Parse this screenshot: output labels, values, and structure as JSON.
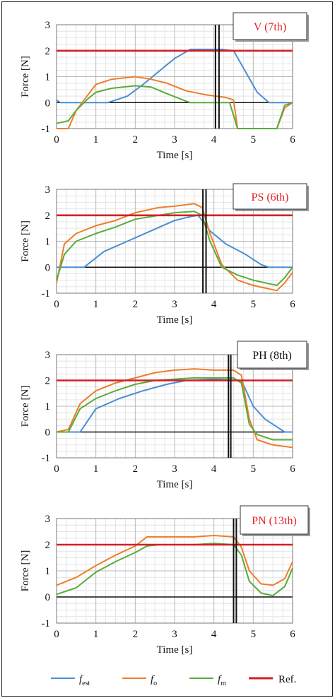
{
  "chart_data": [
    {
      "type": "line",
      "title": "V (7th)",
      "title_color": "#e8202a",
      "xlabel": "Time [s]",
      "ylabel": "Force [N]",
      "xlim": [
        0,
        6
      ],
      "ylim": [
        -1,
        3
      ],
      "xticks": [
        "0",
        "1",
        "2",
        "3",
        "4",
        "5",
        "6"
      ],
      "yticks": [
        "-1",
        "0",
        "1",
        "2",
        "3"
      ],
      "vlines": [
        4.04,
        4.13
      ],
      "series": [
        {
          "key": "f_est",
          "x": [
            0,
            0.1,
            0.3,
            1.3,
            1.8,
            2.2,
            2.6,
            3.0,
            3.4,
            3.8,
            4.2,
            4.5,
            4.8,
            5.1,
            5.4,
            6.0
          ],
          "y": [
            0.1,
            0,
            0,
            0,
            0.25,
            0.7,
            1.2,
            1.7,
            2.05,
            2.05,
            2.05,
            2.0,
            1.2,
            0.4,
            0,
            0
          ]
        },
        {
          "key": "f_o",
          "x": [
            0,
            0.3,
            0.5,
            0.8,
            1.0,
            1.4,
            2.0,
            2.4,
            2.8,
            3.3,
            3.8,
            4.3,
            4.5,
            4.6,
            5.0,
            5.6,
            5.8,
            6.0
          ],
          "y": [
            -1,
            -1,
            -0.3,
            0.3,
            0.7,
            0.9,
            1.0,
            0.9,
            0.75,
            0.45,
            0.3,
            0.2,
            0.1,
            -1,
            -1,
            -1,
            -0.2,
            0
          ]
        },
        {
          "key": "f_m",
          "x": [
            0,
            0.3,
            0.5,
            0.8,
            1.0,
            1.4,
            2.0,
            2.4,
            2.8,
            3.3,
            3.4,
            4.4,
            4.6,
            5.0,
            5.6,
            5.8,
            6.0
          ],
          "y": [
            -0.8,
            -0.7,
            -0.3,
            0.15,
            0.4,
            0.55,
            0.65,
            0.6,
            0.35,
            0.05,
            0,
            0,
            -1,
            -1,
            -1,
            -0.1,
            0
          ]
        },
        {
          "key": "ref",
          "x": [
            0,
            6
          ],
          "y": [
            2,
            2
          ]
        }
      ]
    },
    {
      "type": "line",
      "title": "PS (6th)",
      "title_color": "#e8202a",
      "xlabel": "Time [s]",
      "ylabel": "Force [N]",
      "xlim": [
        0,
        6
      ],
      "ylim": [
        -1,
        3
      ],
      "xticks": [
        "0",
        "1",
        "2",
        "3",
        "4",
        "5",
        "6"
      ],
      "yticks": [
        "-1",
        "0",
        "1",
        "2",
        "3"
      ],
      "vlines": [
        3.72,
        3.8
      ],
      "series": [
        {
          "key": "f_est",
          "x": [
            0,
            0.7,
            1.2,
            1.8,
            2.4,
            3.0,
            3.4,
            3.6,
            3.9,
            4.3,
            4.8,
            5.2,
            5.4,
            6.0
          ],
          "y": [
            0,
            0,
            0.6,
            1.0,
            1.4,
            1.8,
            1.95,
            2.0,
            1.4,
            0.9,
            0.5,
            0.1,
            0,
            0
          ]
        },
        {
          "key": "f_o",
          "x": [
            0,
            0.2,
            0.5,
            1.0,
            1.5,
            2.0,
            2.6,
            3.0,
            3.5,
            3.7,
            3.9,
            4.2,
            4.6,
            5.0,
            5.6,
            5.8,
            6.0
          ],
          "y": [
            -0.6,
            0.9,
            1.3,
            1.6,
            1.8,
            2.1,
            2.3,
            2.35,
            2.45,
            2.3,
            1.3,
            0.1,
            -0.5,
            -0.7,
            -0.9,
            -0.6,
            -0.2
          ]
        },
        {
          "key": "f_m",
          "x": [
            0,
            0.2,
            0.5,
            1.0,
            1.5,
            2.0,
            2.6,
            3.0,
            3.5,
            3.7,
            3.9,
            4.2,
            4.6,
            5.0,
            5.6,
            5.8,
            6.0
          ],
          "y": [
            -0.5,
            0.5,
            1.0,
            1.3,
            1.55,
            1.85,
            2.0,
            2.1,
            2.15,
            2.0,
            1.0,
            0,
            -0.3,
            -0.5,
            -0.7,
            -0.4,
            0
          ]
        },
        {
          "key": "ref",
          "x": [
            0,
            6
          ],
          "y": [
            2,
            2
          ]
        }
      ]
    },
    {
      "type": "line",
      "title": "PH (8th)",
      "title_color": "#111111",
      "xlabel": "Time [s]",
      "ylabel": "Force [N]",
      "xlim": [
        0,
        6
      ],
      "ylim": [
        -1,
        3
      ],
      "xticks": [
        "0",
        "1",
        "2",
        "3",
        "4",
        "5",
        "6"
      ],
      "yticks": [
        "-1",
        "0",
        "1",
        "2",
        "3"
      ],
      "vlines": [
        4.37,
        4.43
      ],
      "series": [
        {
          "key": "f_est",
          "x": [
            0,
            0.6,
            1.0,
            1.6,
            2.2,
            2.8,
            3.3,
            4.0,
            4.7,
            5.0,
            5.3,
            5.6,
            5.8,
            6.0
          ],
          "y": [
            0,
            0,
            0.9,
            1.3,
            1.6,
            1.85,
            2.0,
            2.05,
            2.0,
            1.0,
            0.5,
            0.2,
            0,
            0
          ]
        },
        {
          "key": "f_o",
          "x": [
            0,
            0.3,
            0.6,
            1.0,
            1.5,
            2.0,
            2.5,
            3.0,
            3.5,
            4.0,
            4.5,
            4.7,
            4.9,
            5.1,
            5.5,
            6.0
          ],
          "y": [
            0,
            0.1,
            1.1,
            1.6,
            1.9,
            2.1,
            2.3,
            2.4,
            2.45,
            2.4,
            2.4,
            2.2,
            0.5,
            -0.3,
            -0.5,
            -0.6
          ]
        },
        {
          "key": "f_m",
          "x": [
            0,
            0.3,
            0.6,
            1.0,
            1.5,
            2.0,
            2.5,
            3.0,
            3.5,
            4.0,
            4.5,
            4.7,
            4.9,
            5.1,
            5.5,
            6.0
          ],
          "y": [
            0,
            0,
            0.9,
            1.3,
            1.6,
            1.85,
            2.0,
            2.05,
            2.1,
            2.1,
            2.1,
            1.9,
            0.3,
            -0.1,
            -0.3,
            -0.3
          ]
        },
        {
          "key": "ref",
          "x": [
            0,
            6
          ],
          "y": [
            2,
            2
          ]
        }
      ]
    },
    {
      "type": "line",
      "title": "PN (13th)",
      "title_color": "#e8202a",
      "xlabel": "Time [s]",
      "ylabel": "Force [N]",
      "xlim": [
        0,
        6
      ],
      "ylim": [
        -1,
        3
      ],
      "xticks": [
        "0",
        "1",
        "2",
        "3",
        "4",
        "5",
        "6"
      ],
      "yticks": [
        "-1",
        "0",
        "1",
        "2",
        "3"
      ],
      "vlines": [
        4.5,
        4.57
      ],
      "series": [
        {
          "key": "f_o",
          "x": [
            0,
            0.5,
            1.0,
            1.5,
            2.0,
            2.3,
            2.6,
            3.0,
            3.5,
            4.0,
            4.5,
            4.7,
            4.9,
            5.2,
            5.5,
            5.8,
            6.0
          ],
          "y": [
            0.45,
            0.75,
            1.2,
            1.6,
            1.95,
            2.3,
            2.3,
            2.3,
            2.3,
            2.35,
            2.3,
            1.9,
            1.0,
            0.5,
            0.45,
            0.7,
            1.35
          ]
        },
        {
          "key": "f_m",
          "x": [
            0,
            0.5,
            1.0,
            1.5,
            2.0,
            2.3,
            2.6,
            3.0,
            3.5,
            4.0,
            4.5,
            4.7,
            4.9,
            5.2,
            5.5,
            5.8,
            6.0
          ],
          "y": [
            0.1,
            0.35,
            0.95,
            1.35,
            1.7,
            1.95,
            2.0,
            2.0,
            2.0,
            2.05,
            2.0,
            1.6,
            0.6,
            0.15,
            0.05,
            0.4,
            1.1
          ]
        },
        {
          "key": "ref",
          "x": [
            0,
            6
          ],
          "y": [
            2,
            2
          ]
        }
      ]
    }
  ],
  "colors": {
    "f_est": "#4a8fd4",
    "f_o": "#ef7d2a",
    "f_m": "#5aab3a",
    "ref": "#d31f26"
  },
  "legend": {
    "f_est": {
      "symbol": "f",
      "sub": "est"
    },
    "f_o": {
      "symbol": "f",
      "sub": "o"
    },
    "f_m": {
      "symbol": "f",
      "sub": "m"
    },
    "ref": {
      "text": "Ref."
    }
  }
}
